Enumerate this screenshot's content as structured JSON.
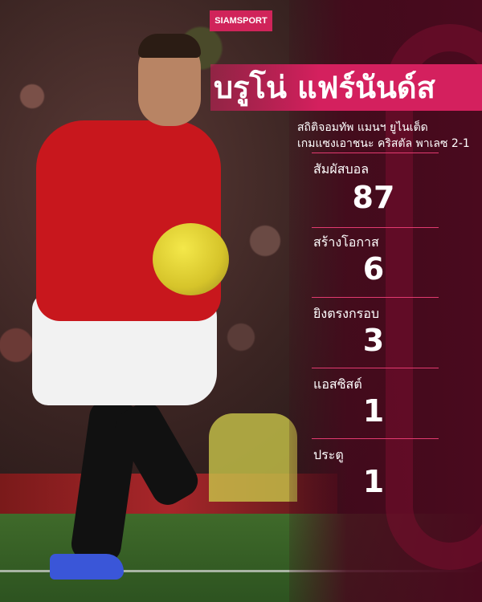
{
  "brand": "SIAMSPORT",
  "title": "บรูโน่ แฟร์นันด์ส",
  "subtitle_lines": [
    "สถิติจอมทัพ แมนฯ ยูไนเต็ด",
    "เกมแซงเอาชนะ คริสตัล พาเลซ 2-1"
  ],
  "stats": [
    {
      "label": "สัมผัสบอล",
      "value": "87"
    },
    {
      "label": "สร้างโอกาส",
      "value": "6"
    },
    {
      "label": "ยิงตรงกรอบ",
      "value": "3"
    },
    {
      "label": "แอสซิสต์",
      "value": "1"
    },
    {
      "label": "ประตู",
      "value": "1"
    }
  ],
  "colors": {
    "accent": "#d4205e",
    "panel": "#4a0a1e",
    "kit": "#c8171d"
  }
}
